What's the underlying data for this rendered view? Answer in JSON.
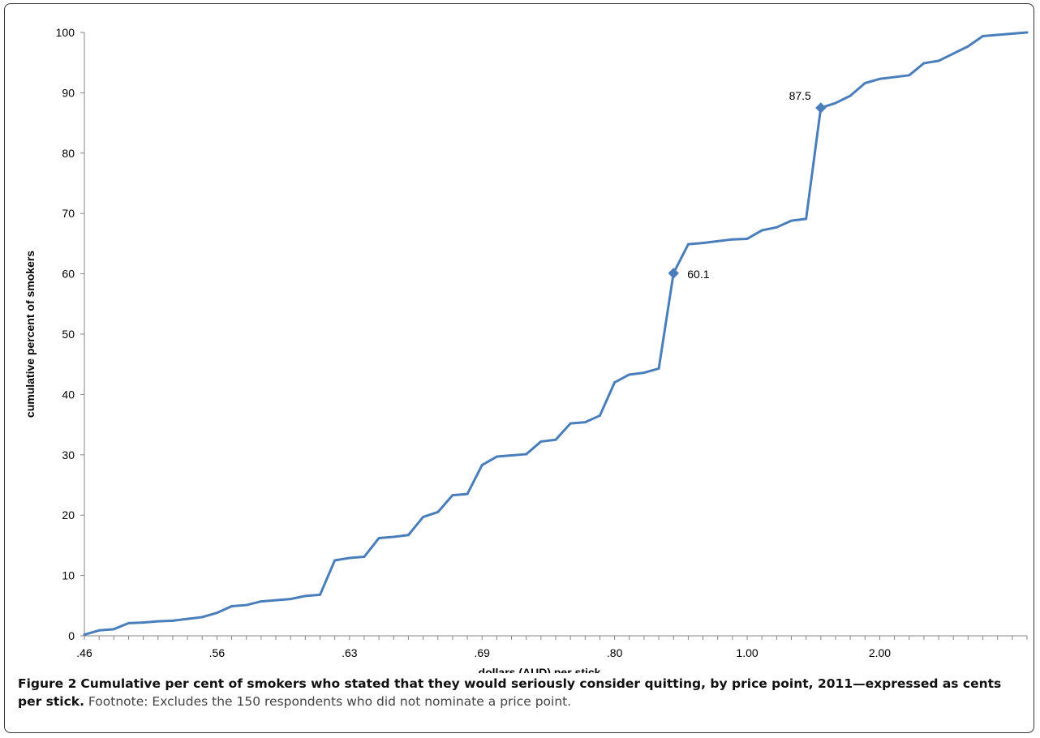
{
  "figure": {
    "label": "Figure 2",
    "title": "Cumulative per cent of smokers who stated that they would seriously consider quitting, by price point, 2011—expressed as cents per stick.",
    "footnote": "Footnote: Excludes the 150 respondents who did not nominate a price point."
  },
  "colors": {
    "series": "#4a7ebb",
    "axis": "#868686",
    "text": "#000000"
  },
  "chart_data": {
    "type": "line",
    "xlabel": "dollars (AUD) per stick",
    "ylabel": "cumulative percent of smokers",
    "ylim": [
      0,
      100
    ],
    "yticks": [
      0,
      10,
      20,
      30,
      40,
      50,
      60,
      70,
      80,
      90,
      100
    ],
    "xtick_labels": [
      ".46",
      ".56",
      ".63",
      ".69",
      ".80",
      "1.00",
      "2.00"
    ],
    "xtick_positions": [
      0,
      9,
      18,
      27,
      36,
      45,
      54
    ],
    "grid": false,
    "legend": "none",
    "series": [
      {
        "values": [
          0.2,
          0.9,
          1.1,
          2.1,
          2.2,
          2.4,
          2.5,
          2.8,
          3.1,
          3.8,
          4.9,
          5.1,
          5.7,
          5.9,
          6.1,
          6.6,
          6.8,
          12.5,
          12.9,
          13.1,
          16.2,
          16.4,
          16.7,
          19.7,
          20.5,
          23.3,
          23.5,
          28.3,
          29.7,
          29.9,
          30.1,
          32.2,
          32.5,
          35.2,
          35.4,
          36.5,
          42.0,
          43.3,
          43.6,
          44.3,
          60.1,
          64.9,
          65.1,
          65.4,
          65.7,
          65.8,
          67.2,
          67.7,
          68.8,
          69.1,
          87.5,
          88.3,
          89.5,
          91.6,
          92.3,
          92.6,
          92.9,
          94.9,
          95.3,
          96.5,
          97.7,
          99.4,
          99.6,
          99.8,
          100.0
        ]
      }
    ],
    "annotations": [
      {
        "index": 40,
        "value": 60.1,
        "label": "60.1"
      },
      {
        "index": 50,
        "value": 87.5,
        "label": "87.5"
      }
    ]
  }
}
